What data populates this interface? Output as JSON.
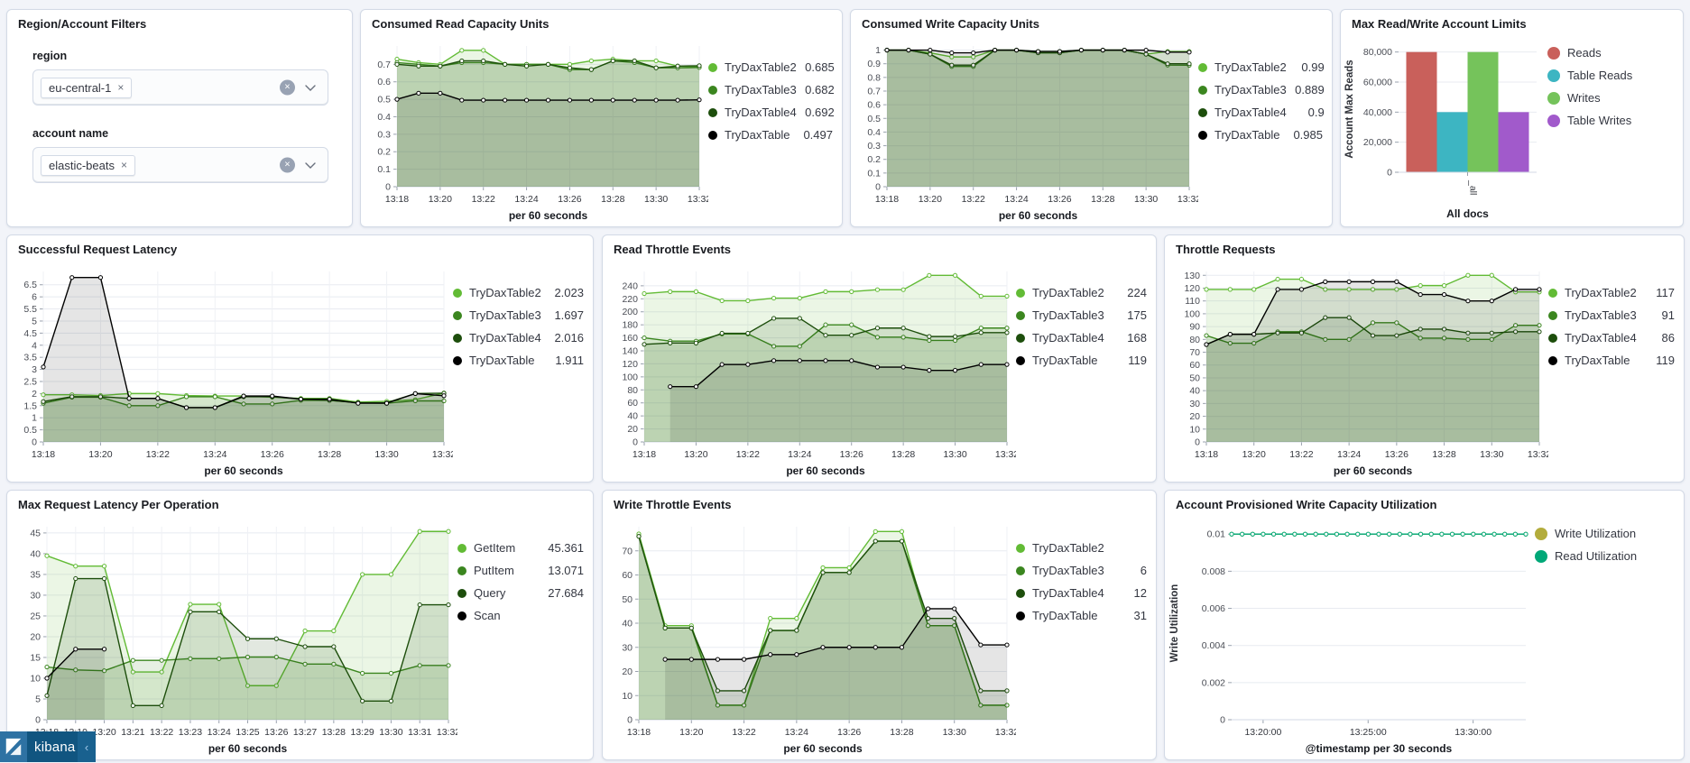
{
  "app": {
    "logo_text": "kibana",
    "collapse_icon": "‹"
  },
  "filters_panel": {
    "title": "Region/Account Filters",
    "region_label": "region",
    "region_value": "eu-central-1",
    "region_remove": "×",
    "account_label": "account name",
    "account_value": "elastic-beats",
    "account_remove": "×",
    "clear_icon": "×"
  },
  "chart_data": [
    {
      "type": "line",
      "title": "Consumed Read Capacity Units",
      "xlabel": "per 60 seconds",
      "x_categories": [
        "13:18",
        "13:19",
        "13:20",
        "13:21",
        "13:22",
        "13:23",
        "13:24",
        "13:25",
        "13:26",
        "13:27",
        "13:28",
        "13:29",
        "13:30",
        "13:31",
        "13:32"
      ],
      "x_tick_every": 2,
      "y_ticks": [
        0,
        0.1,
        0.2,
        0.3,
        0.4,
        0.5,
        0.6,
        0.7
      ],
      "ylim": [
        0,
        0.805
      ],
      "grid": true,
      "legend_position": "right",
      "series": [
        {
          "name": "TryDaxTable2",
          "legend_value": "0.685",
          "color": "#62bb35",
          "values": [
            0.73,
            0.71,
            0.7,
            0.78,
            0.78,
            0.7,
            0.7,
            0.7,
            0.7,
            0.72,
            0.73,
            0.72,
            0.72,
            0.69,
            0.685
          ]
        },
        {
          "name": "TryDaxTable3",
          "legend_value": "0.682",
          "color": "#3b861f",
          "values": [
            0.71,
            0.7,
            0.69,
            0.71,
            0.71,
            0.7,
            0.7,
            0.7,
            0.67,
            0.67,
            0.72,
            0.71,
            0.68,
            0.68,
            0.682
          ]
        },
        {
          "name": "TryDaxTable4",
          "legend_value": "0.692",
          "color": "#1d4e0c",
          "values": [
            0.7,
            0.69,
            0.69,
            0.72,
            0.72,
            0.7,
            0.69,
            0.7,
            0.68,
            0.67,
            0.72,
            0.72,
            0.68,
            0.69,
            0.692
          ]
        },
        {
          "name": "TryDaxTable",
          "legend_value": "0.497",
          "color": "#000000",
          "values": [
            0.5,
            0.535,
            0.535,
            0.495,
            0.495,
            0.495,
            0.495,
            0.495,
            0.495,
            0.495,
            0.495,
            0.495,
            0.495,
            0.495,
            0.497
          ]
        }
      ]
    },
    {
      "type": "line",
      "title": "Consumed Write Capacity Units",
      "xlabel": "per 60 seconds",
      "x_categories": [
        "13:18",
        "13:19",
        "13:20",
        "13:21",
        "13:22",
        "13:23",
        "13:24",
        "13:25",
        "13:26",
        "13:27",
        "13:28",
        "13:29",
        "13:30",
        "13:31",
        "13:32"
      ],
      "x_tick_every": 2,
      "y_ticks": [
        0,
        0.1,
        0.2,
        0.3,
        0.4,
        0.5,
        0.6,
        0.7,
        0.8,
        0.9,
        1
      ],
      "ylim": [
        0,
        1.03
      ],
      "grid": true,
      "legend_position": "right",
      "series": [
        {
          "name": "TryDaxTable2",
          "legend_value": "0.99",
          "color": "#62bb35",
          "values": [
            1,
            1,
            0.98,
            0.95,
            0.95,
            1,
            1,
            0.99,
            0.99,
            1,
            1,
            1,
            0.97,
            0.99,
            0.99
          ]
        },
        {
          "name": "TryDaxTable3",
          "legend_value": "0.889",
          "color": "#3b861f",
          "values": [
            1,
            1,
            0.97,
            0.88,
            0.88,
            1,
            1,
            0.98,
            0.98,
            1,
            1,
            1,
            0.97,
            0.89,
            0.889
          ]
        },
        {
          "name": "TryDaxTable4",
          "legend_value": "0.9",
          "color": "#1d4e0c",
          "values": [
            1,
            1,
            0.97,
            0.89,
            0.89,
            1,
            1,
            0.98,
            0.98,
            1,
            1,
            1,
            0.97,
            0.9,
            0.9
          ]
        },
        {
          "name": "TryDaxTable",
          "legend_value": "0.985",
          "color": "#000000",
          "values": [
            1,
            1,
            1,
            0.98,
            0.98,
            1,
            1,
            0.99,
            0.99,
            1,
            1,
            1,
            1,
            0.985,
            0.985
          ]
        }
      ]
    },
    {
      "type": "bar",
      "title": "Max Read/Write Account Limits",
      "ylabel": "Account Max Reads",
      "categories": [
        "_all"
      ],
      "category_group_label": "All docs",
      "y_ticks": [
        0,
        20000,
        40000,
        60000,
        80000
      ],
      "y_tick_labels": [
        "0",
        "20,000",
        "40,000",
        "60,000",
        "80,000"
      ],
      "ylim": [
        0,
        84000
      ],
      "legend_position": "right",
      "series": [
        {
          "name": "Reads",
          "color": "#c9605b",
          "value": 80000
        },
        {
          "name": "Table Reads",
          "color": "#3db5c2",
          "value": 40000
        },
        {
          "name": "Writes",
          "color": "#75c35b",
          "value": 80000
        },
        {
          "name": "Table Writes",
          "color": "#a15acb",
          "value": 40000
        }
      ]
    },
    {
      "type": "line",
      "title": "Successful Request Latency",
      "xlabel": "per 60 seconds",
      "x_categories": [
        "13:18",
        "13:19",
        "13:20",
        "13:21",
        "13:22",
        "13:23",
        "13:24",
        "13:25",
        "13:26",
        "13:27",
        "13:28",
        "13:29",
        "13:30",
        "13:31",
        "13:32"
      ],
      "x_tick_every": 2,
      "y_ticks": [
        0,
        0.5,
        1,
        1.5,
        2,
        2.5,
        3,
        3.5,
        4,
        4.5,
        5,
        5.5,
        6,
        6.5
      ],
      "ylim": [
        0,
        7.05
      ],
      "grid": true,
      "legend_position": "right",
      "series": [
        {
          "name": "TryDaxTable2",
          "legend_value": "2.023",
          "color": "#62bb35",
          "values": [
            1.95,
            1.95,
            1.92,
            2.0,
            2.0,
            1.92,
            1.9,
            1.9,
            1.85,
            1.8,
            1.8,
            1.65,
            1.68,
            1.75,
            2.023
          ]
        },
        {
          "name": "TryDaxTable3",
          "legend_value": "1.697",
          "color": "#3b861f",
          "values": [
            1.6,
            1.85,
            1.85,
            1.5,
            1.5,
            1.87,
            1.87,
            1.57,
            1.57,
            1.72,
            1.72,
            1.62,
            1.6,
            1.7,
            1.697
          ]
        },
        {
          "name": "TryDaxTable4",
          "legend_value": "2.016",
          "color": "#1d4e0c",
          "values": [
            1.67,
            1.87,
            1.87,
            1.8,
            1.8,
            1.42,
            1.42,
            1.87,
            1.87,
            1.77,
            1.72,
            1.62,
            1.62,
            2.0,
            2.016
          ]
        },
        {
          "name": "TryDaxTable",
          "legend_value": "1.911",
          "color": "#000000",
          "values": [
            3.1,
            6.8,
            6.8,
            1.8,
            1.8,
            1.42,
            1.42,
            1.9,
            1.9,
            1.77,
            1.77,
            1.6,
            1.6,
            2.0,
            1.911
          ]
        }
      ]
    },
    {
      "type": "line",
      "title": "Read Throttle Events",
      "xlabel": "per 60 seconds",
      "x_categories": [
        "13:18",
        "13:19",
        "13:20",
        "13:21",
        "13:22",
        "13:23",
        "13:24",
        "13:25",
        "13:26",
        "13:27",
        "13:28",
        "13:29",
        "13:30",
        "13:31",
        "13:32"
      ],
      "x_tick_every": 2,
      "y_ticks": [
        0,
        20,
        40,
        60,
        80,
        100,
        120,
        140,
        160,
        180,
        200,
        220,
        240
      ],
      "ylim": [
        0,
        262
      ],
      "grid": true,
      "legend_position": "right",
      "series": [
        {
          "name": "TryDaxTable2",
          "legend_value": "224",
          "color": "#62bb35",
          "values": [
            228,
            231,
            231,
            217,
            217,
            221,
            221,
            231,
            231,
            234,
            234,
            256,
            256,
            224,
            224
          ]
        },
        {
          "name": "TryDaxTable3",
          "legend_value": "175",
          "color": "#3b861f",
          "values": [
            160,
            155,
            155,
            166,
            166,
            147,
            147,
            180,
            180,
            161,
            161,
            156,
            156,
            175,
            175
          ]
        },
        {
          "name": "TryDaxTable4",
          "legend_value": "168",
          "color": "#1d4e0c",
          "values": [
            150,
            152,
            152,
            167,
            167,
            190,
            190,
            164,
            164,
            175,
            175,
            162,
            162,
            168,
            168
          ]
        },
        {
          "name": "TryDaxTable",
          "legend_value": "119",
          "color": "#000000",
          "values": [
            null,
            85,
            85,
            119,
            119,
            125,
            125,
            125,
            125,
            115,
            115,
            110,
            110,
            119,
            119
          ]
        }
      ]
    },
    {
      "type": "line",
      "title": "Throttle Requests",
      "xlabel": "per 60 seconds",
      "x_categories": [
        "13:18",
        "13:19",
        "13:20",
        "13:21",
        "13:22",
        "13:23",
        "13:24",
        "13:25",
        "13:26",
        "13:27",
        "13:28",
        "13:29",
        "13:30",
        "13:31",
        "13:32"
      ],
      "x_tick_every": 2,
      "y_ticks": [
        0,
        10,
        20,
        30,
        40,
        50,
        60,
        70,
        80,
        90,
        100,
        110,
        120,
        130
      ],
      "ylim": [
        0,
        133
      ],
      "grid": true,
      "legend_position": "right",
      "series": [
        {
          "name": "TryDaxTable2",
          "legend_value": "117",
          "color": "#62bb35",
          "values": [
            119,
            119,
            119,
            127,
            127,
            119,
            119,
            119,
            119,
            122,
            122,
            130,
            130,
            117,
            117
          ]
        },
        {
          "name": "TryDaxTable3",
          "legend_value": "91",
          "color": "#3b861f",
          "values": [
            83,
            77,
            77,
            86,
            86,
            80,
            80,
            93,
            93,
            81,
            81,
            80,
            80,
            91,
            91
          ]
        },
        {
          "name": "TryDaxTable4",
          "legend_value": "86",
          "color": "#1d4e0c",
          "values": [
            76,
            84,
            84,
            85,
            85,
            97,
            97,
            83,
            83,
            88,
            88,
            85,
            85,
            86,
            86
          ]
        },
        {
          "name": "TryDaxTable",
          "legend_value": "119",
          "color": "#000000",
          "values": [
            76,
            84,
            84,
            119,
            119,
            125,
            125,
            125,
            125,
            115,
            115,
            110,
            110,
            119,
            119
          ]
        }
      ]
    },
    {
      "type": "line",
      "title": "Max Request Latency Per Operation",
      "xlabel": "per 60 seconds",
      "x_categories": [
        "13:18",
        "13:19",
        "13:20",
        "13:21",
        "13:22",
        "13:23",
        "13:24",
        "13:25",
        "13:26",
        "13:27",
        "13:28",
        "13:29",
        "13:30",
        "13:31",
        "13:32"
      ],
      "x_tick_every": 1,
      "y_ticks": [
        0,
        5,
        10,
        15,
        20,
        25,
        30,
        35,
        40,
        45
      ],
      "ylim": [
        0,
        46.5
      ],
      "grid": true,
      "legend_position": "right",
      "series": [
        {
          "name": "GetItem",
          "legend_value": "45.361",
          "color": "#62bb35",
          "values": [
            39.5,
            37,
            37,
            11.5,
            11.5,
            27.8,
            27.8,
            8.2,
            8.2,
            21.4,
            21.4,
            35,
            35,
            45.361,
            45.361
          ]
        },
        {
          "name": "PutItem",
          "legend_value": "13.071",
          "color": "#3b861f",
          "values": [
            12.7,
            12,
            11.8,
            14.3,
            14.3,
            14.7,
            14.7,
            15.1,
            15.1,
            13.4,
            13.4,
            11.2,
            11.2,
            13.071,
            13.071
          ]
        },
        {
          "name": "Query",
          "legend_value": "27.684",
          "color": "#1d4e0c",
          "values": [
            5.8,
            34,
            34,
            3.4,
            3.4,
            26,
            26,
            19.5,
            19.5,
            17.6,
            17.6,
            4.5,
            4.5,
            27.684,
            27.684
          ]
        },
        {
          "name": "Scan",
          "legend_value": "",
          "color": "#000000",
          "values": [
            10,
            17,
            17,
            null,
            null,
            null,
            null,
            null,
            null,
            null,
            null,
            null,
            null,
            null,
            null
          ]
        }
      ]
    },
    {
      "type": "line",
      "title": "Write Throttle Events",
      "xlabel": "per 60 seconds",
      "x_categories": [
        "13:18",
        "13:19",
        "13:20",
        "13:21",
        "13:22",
        "13:23",
        "13:24",
        "13:25",
        "13:26",
        "13:27",
        "13:28",
        "13:29",
        "13:30",
        "13:31",
        "13:32"
      ],
      "x_tick_every": 2,
      "y_ticks": [
        0,
        10,
        20,
        30,
        40,
        50,
        60,
        70
      ],
      "ylim": [
        0,
        80
      ],
      "grid": true,
      "legend_position": "right",
      "series": [
        {
          "name": "TryDaxTable2",
          "legend_value": "",
          "color": "#62bb35",
          "values": [
            77,
            39,
            39,
            6,
            6,
            42,
            42,
            63,
            63,
            78,
            78,
            39,
            39,
            6,
            6
          ]
        },
        {
          "name": "TryDaxTable3",
          "legend_value": "6",
          "color": "#3b861f",
          "values": [
            76,
            38,
            38,
            6,
            6,
            37,
            37,
            61,
            61,
            74,
            74,
            39,
            39,
            6,
            6
          ]
        },
        {
          "name": "TryDaxTable4",
          "legend_value": "12",
          "color": "#1d4e0c",
          "values": [
            76,
            38,
            38,
            12,
            12,
            37,
            37,
            61,
            61,
            74,
            74,
            42,
            42,
            12,
            12
          ]
        },
        {
          "name": "TryDaxTable",
          "legend_value": "31",
          "color": "#000000",
          "values": [
            null,
            25,
            25,
            25,
            25,
            27,
            27,
            30,
            30,
            30,
            30,
            46,
            46,
            31,
            31
          ]
        }
      ]
    },
    {
      "type": "line",
      "title": "Account Provisioned Write Capacity Utilization",
      "xlabel": "@timestamp per 30 seconds",
      "ylabel": "Write Utilization",
      "x_tick_labels": [
        "13:20:00",
        "13:25:00",
        "13:30:00"
      ],
      "x_tick_positions": [
        0.107,
        0.464,
        0.821
      ],
      "y_ticks": [
        0,
        0.002,
        0.004,
        0.006,
        0.008,
        0.01
      ],
      "y_tick_labels": [
        "0",
        "0.002",
        "0.004",
        "0.006",
        "0.008",
        "0.01"
      ],
      "ylim": [
        0,
        0.0104
      ],
      "grid": false,
      "legend_position": "right",
      "series": [
        {
          "name": "Write Utilization",
          "color": "#b3ac3c",
          "fill_opacity": 0,
          "values": [
            0.01,
            0.01,
            0.01,
            0.01,
            0.01,
            0.01,
            0.01,
            0.01,
            0.01,
            0.01,
            0.01,
            0.01,
            0.01,
            0.01,
            0.01,
            0.01,
            0.01,
            0.01,
            0.01,
            0.01,
            0.01,
            0.01,
            0.01,
            0.01,
            0.01,
            0.01,
            0.01,
            0.01,
            0.01
          ]
        },
        {
          "name": "Read Utilization",
          "color": "#00a878",
          "fill_opacity": 0,
          "values": [
            0.01,
            0.01,
            0.01,
            0.01,
            0.01,
            0.01,
            0.01,
            0.01,
            0.01,
            0.01,
            0.01,
            0.01,
            0.01,
            0.01,
            0.01,
            0.01,
            0.01,
            0.01,
            0.01,
            0.01,
            0.01,
            0.01,
            0.01,
            0.01,
            0.01,
            0.01,
            0.01,
            0.01,
            0.01
          ]
        }
      ]
    }
  ]
}
